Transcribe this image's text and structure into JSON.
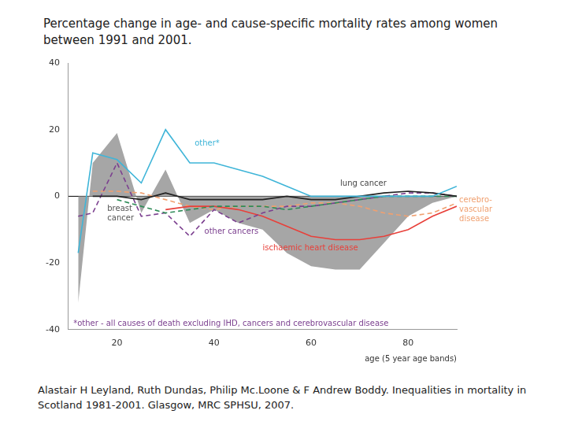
{
  "chart_data": {
    "type": "line",
    "title": "Percentage change in age- and cause-specific mortality rates among women between 1991 and 2001.",
    "source": "Alastair H Leyland, Ruth Dundas, Philip Mc.Loone & F Andrew Boddy. Inequalities in mortality in Scotland 1981-2001. Glasgow, MRC SPHSU, 2007.",
    "x_label": "age (5 year age bands)",
    "x": [
      12,
      15,
      20,
      25,
      30,
      35,
      40,
      45,
      50,
      55,
      60,
      65,
      70,
      75,
      80,
      85,
      90
    ],
    "xlim": [
      10,
      90
    ],
    "xticks": [
      20,
      40,
      60,
      80
    ],
    "ylim": [
      -40,
      40
    ],
    "yticks": [
      -40,
      -20,
      0,
      20,
      40
    ],
    "grid": false,
    "hline": 0,
    "series": [
      {
        "type": "area",
        "color": "#a6a6a6",
        "values": [
          -32,
          10,
          19,
          -5,
          8,
          -8,
          -4,
          -8,
          -10,
          -17,
          -21,
          -22,
          -22,
          -14,
          -6,
          -2,
          0
        ]
      },
      {
        "name": "other*",
        "color": "#3fb5d8",
        "line_style": "solid",
        "marker": "none",
        "values": [
          -17,
          13,
          11,
          4,
          20,
          10,
          10,
          8,
          6,
          3,
          0,
          0,
          0,
          0,
          0,
          0,
          3
        ]
      },
      {
        "name": "lung cancer",
        "color": "#222222",
        "line_style": "solid",
        "marker": "none",
        "values": [
          null,
          0,
          0,
          -1,
          1,
          -1,
          -1,
          -1,
          -1,
          0,
          -1,
          -1,
          0,
          1,
          1.5,
          1,
          0
        ]
      },
      {
        "name": "breast cancer",
        "color": "#2e8b57",
        "line_style": "dashed",
        "marker": "none",
        "values": [
          null,
          null,
          -1,
          -3,
          -5,
          -4,
          -3,
          -3,
          -3,
          -4,
          -3,
          -2,
          -1,
          0,
          0,
          0,
          0
        ]
      },
      {
        "name": "other cancers",
        "color": "#7b3f8f",
        "line_style": "dashed",
        "marker": "none",
        "values": [
          -6,
          -5,
          10,
          -6,
          -5,
          -12,
          -4,
          -8,
          -5,
          -3,
          -3,
          -2,
          -1,
          0,
          1,
          1,
          0
        ]
      },
      {
        "name": "ischaemic heart disease",
        "color": "#e8403a",
        "line_style": "solid",
        "marker": "none",
        "values": [
          null,
          null,
          null,
          null,
          -4,
          -3,
          -3,
          -4,
          -6,
          -9,
          -12,
          -13,
          -13,
          -12,
          -10,
          -6,
          -3
        ]
      },
      {
        "name": "cerebrovascular disease",
        "color": "#f0a070",
        "line_style": "dashed",
        "marker": "none",
        "values": [
          null,
          1.5,
          1.5,
          1,
          -1,
          -3,
          -4,
          -3,
          -3,
          -3,
          -2,
          -2,
          -3,
          -5,
          -6,
          -5,
          -2
        ]
      }
    ],
    "annotations": [
      {
        "text": [
          "other*"
        ],
        "x": 36,
        "y": 17,
        "color": "#3fb5d8"
      },
      {
        "text": [
          "lung cancer"
        ],
        "x": 66,
        "y": 5,
        "color": "#444444"
      },
      {
        "text": [
          "breast",
          "cancer"
        ],
        "x": 18,
        "y": -2.5,
        "color": "#555555"
      },
      {
        "text": [
          "other cancers"
        ],
        "x": 38,
        "y": -9.5,
        "color": "#7b3f8f"
      },
      {
        "text": [
          "ischaemic heart disease"
        ],
        "x": 50,
        "y": -14.5,
        "color": "#e8403a"
      },
      {
        "text": [
          "cerebro-",
          "vascular",
          "disease"
        ],
        "x": 90.5,
        "y": 0,
        "color": "#f0a070"
      },
      {
        "text": [
          "*other - all causes of death excluding IHD, cancers and cerebrovascular disease"
        ],
        "x": 11,
        "y": -37,
        "color": "#7b3f8f"
      }
    ]
  }
}
